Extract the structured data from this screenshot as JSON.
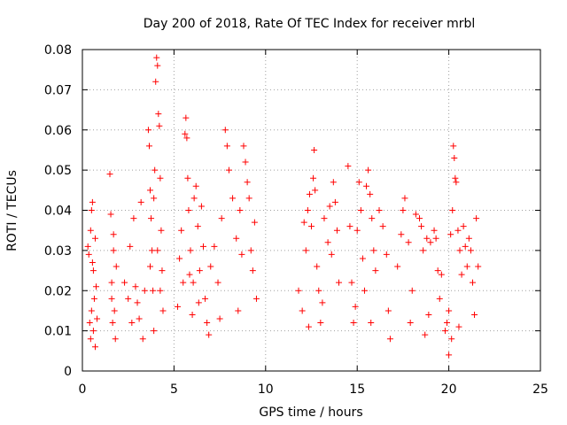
{
  "chart_data": {
    "type": "scatter",
    "title": "Day 200 of 2018, Rate Of TEC Index for receiver mrbl",
    "xlabel": "GPS time / hours",
    "ylabel": "ROTI / TECUs",
    "xlim": [
      0,
      25
    ],
    "ylim": [
      0,
      0.08
    ],
    "xticks": [
      "0",
      "5",
      "10",
      "15",
      "20",
      "25"
    ],
    "xtick_values": [
      0,
      5,
      10,
      15,
      20,
      25
    ],
    "yticks": [
      "0",
      "0.01",
      "0.02",
      "0.03",
      "0.04",
      "0.05",
      "0.06",
      "0.07",
      "0.08"
    ],
    "ytick_values": [
      0,
      0.01,
      0.02,
      0.03,
      0.04,
      0.05,
      0.06,
      0.07,
      0.08
    ],
    "grid": true,
    "legend": "none",
    "marker": "plus",
    "marker_color": "#ff0000",
    "series": [
      {
        "points": [
          [
            0.3,
            0.031
          ],
          [
            0.35,
            0.029
          ],
          [
            0.4,
            0.012
          ],
          [
            0.45,
            0.008
          ],
          [
            0.5,
            0.015
          ],
          [
            0.5,
            0.04
          ],
          [
            0.55,
            0.042
          ],
          [
            0.6,
            0.025
          ],
          [
            0.6,
            0.01
          ],
          [
            0.65,
            0.018
          ],
          [
            0.7,
            0.033
          ],
          [
            0.7,
            0.006
          ],
          [
            0.75,
            0.021
          ],
          [
            0.8,
            0.013
          ],
          [
            0.45,
            0.035
          ],
          [
            0.55,
            0.027
          ],
          [
            1.5,
            0.049
          ],
          [
            1.55,
            0.039
          ],
          [
            1.6,
            0.022
          ],
          [
            1.65,
            0.012
          ],
          [
            1.7,
            0.03
          ],
          [
            1.75,
            0.015
          ],
          [
            1.8,
            0.008
          ],
          [
            1.85,
            0.026
          ],
          [
            1.6,
            0.018
          ],
          [
            1.7,
            0.034
          ],
          [
            2.3,
            0.022
          ],
          [
            2.5,
            0.018
          ],
          [
            2.6,
            0.031
          ],
          [
            2.7,
            0.012
          ],
          [
            2.8,
            0.038
          ],
          [
            2.9,
            0.021
          ],
          [
            3.0,
            0.017
          ],
          [
            3.1,
            0.013
          ],
          [
            3.2,
            0.042
          ],
          [
            3.4,
            0.02
          ],
          [
            3.3,
            0.008
          ],
          [
            3.6,
            0.06
          ],
          [
            3.65,
            0.056
          ],
          [
            3.7,
            0.045
          ],
          [
            3.75,
            0.038
          ],
          [
            3.8,
            0.03
          ],
          [
            3.85,
            0.02
          ],
          [
            3.9,
            0.01
          ],
          [
            3.95,
            0.05
          ],
          [
            4.0,
            0.072
          ],
          [
            4.05,
            0.078
          ],
          [
            4.1,
            0.076
          ],
          [
            4.15,
            0.064
          ],
          [
            4.2,
            0.061
          ],
          [
            4.25,
            0.048
          ],
          [
            4.3,
            0.035
          ],
          [
            4.35,
            0.025
          ],
          [
            4.4,
            0.015
          ],
          [
            3.7,
            0.026
          ],
          [
            4.1,
            0.03
          ],
          [
            4.25,
            0.02
          ],
          [
            3.9,
            0.043
          ],
          [
            5.2,
            0.016
          ],
          [
            5.3,
            0.028
          ],
          [
            5.4,
            0.035
          ],
          [
            5.5,
            0.022
          ],
          [
            5.6,
            0.059
          ],
          [
            5.65,
            0.063
          ],
          [
            5.7,
            0.058
          ],
          [
            5.75,
            0.048
          ],
          [
            5.8,
            0.04
          ],
          [
            5.9,
            0.03
          ],
          [
            6.0,
            0.014
          ],
          [
            6.1,
            0.043
          ],
          [
            6.2,
            0.046
          ],
          [
            6.3,
            0.036
          ],
          [
            6.4,
            0.025
          ],
          [
            6.5,
            0.041
          ],
          [
            6.6,
            0.031
          ],
          [
            6.7,
            0.018
          ],
          [
            6.8,
            0.012
          ],
          [
            6.9,
            0.009
          ],
          [
            6.05,
            0.022
          ],
          [
            6.35,
            0.017
          ],
          [
            5.85,
            0.024
          ],
          [
            7.0,
            0.026
          ],
          [
            7.2,
            0.031
          ],
          [
            7.4,
            0.022
          ],
          [
            7.6,
            0.038
          ],
          [
            7.8,
            0.06
          ],
          [
            7.9,
            0.056
          ],
          [
            8.0,
            0.05
          ],
          [
            8.2,
            0.043
          ],
          [
            8.4,
            0.033
          ],
          [
            8.6,
            0.04
          ],
          [
            8.7,
            0.029
          ],
          [
            8.8,
            0.056
          ],
          [
            8.9,
            0.052
          ],
          [
            9.0,
            0.047
          ],
          [
            9.1,
            0.043
          ],
          [
            9.2,
            0.03
          ],
          [
            9.3,
            0.025
          ],
          [
            9.4,
            0.037
          ],
          [
            9.5,
            0.018
          ],
          [
            7.5,
            0.013
          ],
          [
            8.5,
            0.015
          ],
          [
            11.8,
            0.02
          ],
          [
            12.0,
            0.015
          ],
          [
            12.1,
            0.037
          ],
          [
            12.2,
            0.03
          ],
          [
            12.3,
            0.04
          ],
          [
            12.4,
            0.044
          ],
          [
            12.5,
            0.036
          ],
          [
            12.6,
            0.048
          ],
          [
            12.65,
            0.055
          ],
          [
            12.7,
            0.045
          ],
          [
            12.8,
            0.026
          ],
          [
            12.9,
            0.02
          ],
          [
            13.0,
            0.012
          ],
          [
            13.2,
            0.038
          ],
          [
            13.4,
            0.032
          ],
          [
            13.5,
            0.041
          ],
          [
            13.6,
            0.029
          ],
          [
            13.7,
            0.047
          ],
          [
            13.8,
            0.042
          ],
          [
            13.9,
            0.035
          ],
          [
            14.0,
            0.022
          ],
          [
            12.35,
            0.011
          ],
          [
            13.1,
            0.017
          ],
          [
            14.5,
            0.051
          ],
          [
            14.6,
            0.036
          ],
          [
            14.7,
            0.022
          ],
          [
            14.8,
            0.012
          ],
          [
            15.0,
            0.035
          ],
          [
            15.1,
            0.047
          ],
          [
            15.2,
            0.04
          ],
          [
            15.3,
            0.028
          ],
          [
            15.4,
            0.02
          ],
          [
            15.5,
            0.046
          ],
          [
            15.6,
            0.05
          ],
          [
            15.7,
            0.044
          ],
          [
            15.8,
            0.038
          ],
          [
            15.9,
            0.03
          ],
          [
            16.0,
            0.025
          ],
          [
            16.2,
            0.04
          ],
          [
            16.4,
            0.036
          ],
          [
            16.6,
            0.029
          ],
          [
            16.7,
            0.015
          ],
          [
            16.8,
            0.008
          ],
          [
            14.9,
            0.016
          ],
          [
            15.75,
            0.012
          ],
          [
            17.2,
            0.026
          ],
          [
            17.4,
            0.034
          ],
          [
            17.5,
            0.04
          ],
          [
            17.6,
            0.043
          ],
          [
            17.8,
            0.032
          ],
          [
            18.0,
            0.02
          ],
          [
            18.2,
            0.039
          ],
          [
            18.4,
            0.038
          ],
          [
            18.5,
            0.036
          ],
          [
            18.6,
            0.03
          ],
          [
            18.8,
            0.033
          ],
          [
            18.9,
            0.014
          ],
          [
            19.0,
            0.032
          ],
          [
            19.2,
            0.035
          ],
          [
            19.3,
            0.033
          ],
          [
            19.4,
            0.025
          ],
          [
            19.5,
            0.018
          ],
          [
            19.6,
            0.024
          ],
          [
            19.8,
            0.01
          ],
          [
            17.9,
            0.012
          ],
          [
            18.7,
            0.009
          ],
          [
            19.9,
            0.012
          ],
          [
            20.0,
            0.015
          ],
          [
            20.1,
            0.034
          ],
          [
            20.2,
            0.04
          ],
          [
            20.25,
            0.056
          ],
          [
            20.3,
            0.053
          ],
          [
            20.35,
            0.048
          ],
          [
            20.4,
            0.047
          ],
          [
            20.5,
            0.035
          ],
          [
            20.6,
            0.03
          ],
          [
            20.7,
            0.024
          ],
          [
            20.8,
            0.036
          ],
          [
            20.9,
            0.031
          ],
          [
            21.0,
            0.026
          ],
          [
            21.1,
            0.033
          ],
          [
            21.2,
            0.03
          ],
          [
            21.3,
            0.022
          ],
          [
            21.5,
            0.038
          ],
          [
            21.6,
            0.026
          ],
          [
            20.0,
            0.004
          ],
          [
            20.15,
            0.008
          ],
          [
            21.4,
            0.014
          ],
          [
            20.55,
            0.011
          ]
        ]
      }
    ]
  }
}
